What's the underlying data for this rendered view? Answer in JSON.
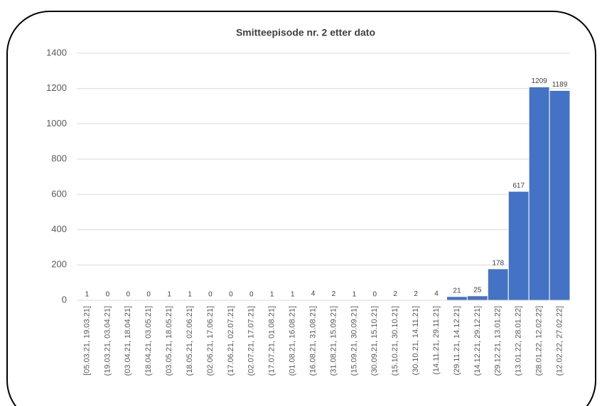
{
  "chart_data": {
    "type": "bar",
    "title": "Smitteepisode nr. 2 etter dato",
    "categories": [
      "[05.03.21, 19.03.21]",
      "(19.03.21, 03.04.21]",
      "(03.04.21, 18.04.21]",
      "(18.04.21, 03.05.21]",
      "(03.05.21, 18.05.21]",
      "(18.05.21, 02.06.21]",
      "(02.06.21, 17.06.21]",
      "(17.06.21, 02.07.21]",
      "(02.07.21, 17.07.21]",
      "(17.07.21, 01.08.21]",
      "(01.08.21, 16.08.21]",
      "(16.08.21, 31.08.21]",
      "(31.08.21, 15.09.21]",
      "(15.09.21, 30.09.21]",
      "(30.09.21, 15.10.21]",
      "(15.10.21, 30.10.21]",
      "(30.10.21, 14.11.21]",
      "(14.11.21, 29.11.21]",
      "(29.11.21, 14.12.21]",
      "(14.12.21, 29.12.21]",
      "(29.12.21, 13.01.22]",
      "(13.01.22, 28.01.22]",
      "(28.01.22, 12.02.22]",
      "(12.02.22, 27.02.22]"
    ],
    "values": [
      1,
      0,
      0,
      0,
      1,
      1,
      0,
      0,
      0,
      1,
      1,
      4,
      2,
      1,
      0,
      2,
      2,
      4,
      21,
      25,
      178,
      617,
      1209,
      1189
    ],
    "color": "#4472c4",
    "ylim": [
      0,
      1400
    ],
    "yticks": [
      0,
      200,
      400,
      600,
      800,
      1000,
      1200,
      1400
    ],
    "grid": true
  }
}
